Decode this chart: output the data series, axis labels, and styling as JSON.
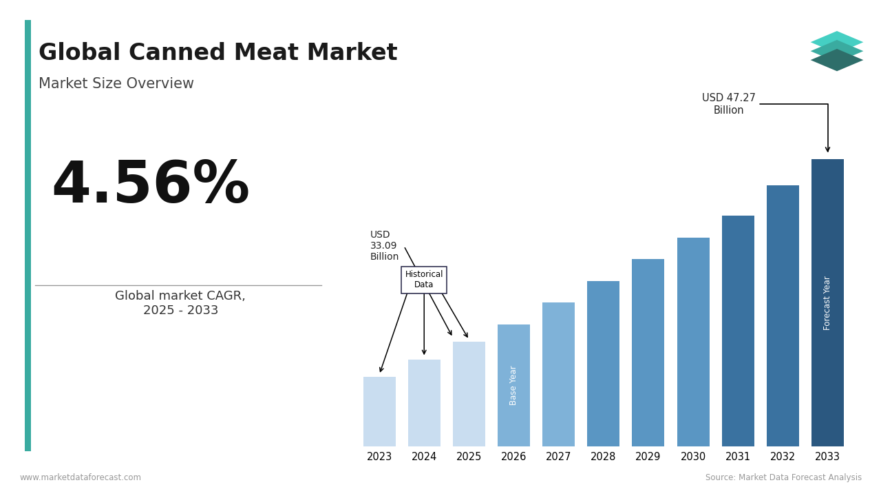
{
  "title": "Global Canned Meat Market",
  "subtitle": "Market Size Overview",
  "cagr": "4.56%",
  "cagr_label": "Global market CAGR,\n2025 - 2033",
  "years": [
    2023,
    2024,
    2025,
    2026,
    2027,
    2028,
    2029,
    2030,
    2031,
    2032,
    2033
  ],
  "values": [
    16,
    20,
    24,
    28,
    33,
    38,
    43,
    48,
    53,
    60,
    66
  ],
  "bar_colors": [
    "#c9ddf0",
    "#c9ddf0",
    "#c9ddf0",
    "#7fb2d8",
    "#7fb2d8",
    "#5a96c3",
    "#5a96c3",
    "#5a96c3",
    "#3a72a0",
    "#3a72a0",
    "#2b5880"
  ],
  "historical_data_label": "Historical\nData",
  "base_year_label": "Base Year",
  "forecast_year_label": "Forecast Year",
  "usd_3309_label": "USD\n33.09\nBillion",
  "usd_4727_label": "USD 47.27\nBillion",
  "footer_left": "www.marketdataforecast.com",
  "source_text": "Source: Market Data Forecast Analysis",
  "title_bar_color": "#3aaba0",
  "background_color": "#ffffff",
  "icon_colors": [
    "#2e6e6a",
    "#3aaba0",
    "#45cfc3"
  ]
}
